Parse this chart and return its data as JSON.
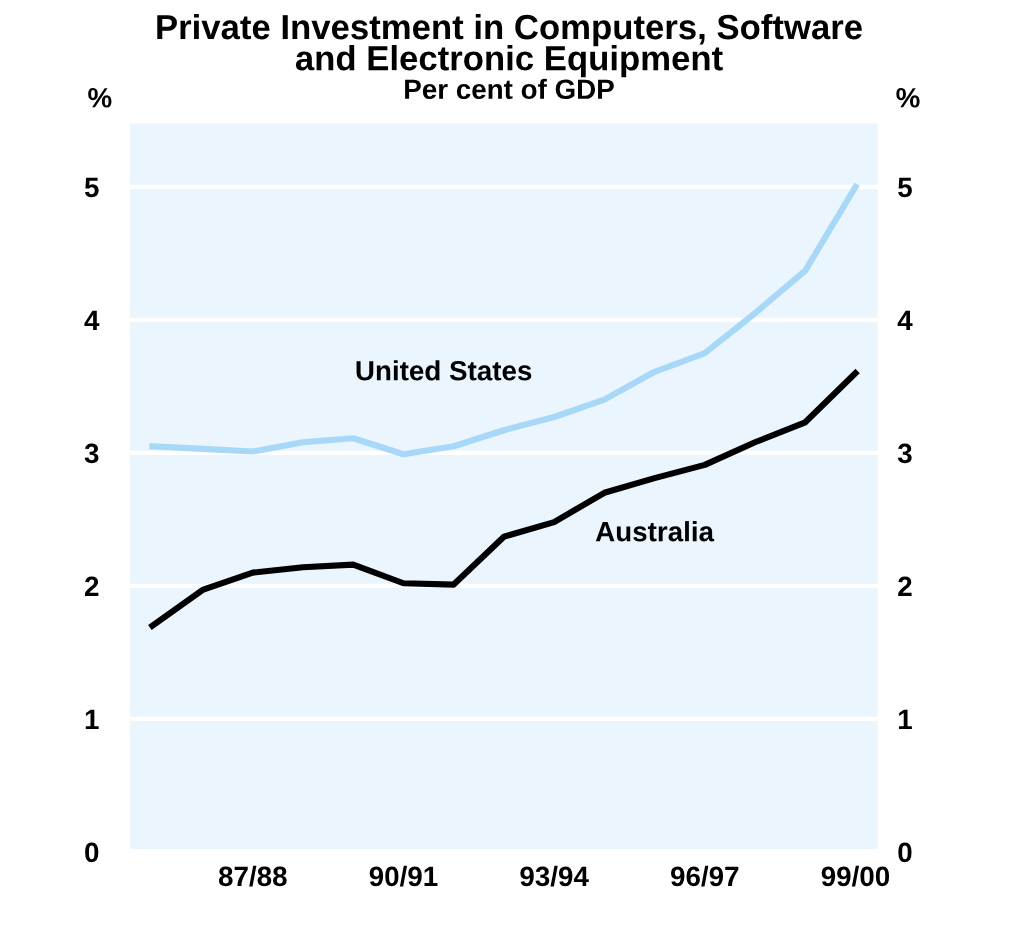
{
  "chart_data": {
    "type": "line",
    "title": "Private Investment in Computers, Software\nand Electronic Equipment",
    "subtitle": "Per cent of GDP",
    "ylabel": "%",
    "y2label": "%",
    "categories": [
      null,
      null,
      "87/88",
      null,
      null,
      "90/91",
      null,
      null,
      "93/94",
      null,
      null,
      "96/97",
      null,
      null,
      "99/00"
    ],
    "series": [
      {
        "name": "United States",
        "color": "#a8d8f8",
        "values": [
          3.05,
          3.03,
          3.01,
          3.08,
          3.11,
          2.99,
          3.05,
          3.17,
          3.27,
          3.4,
          3.61,
          3.75,
          4.05,
          4.37,
          5.0
        ]
      },
      {
        "name": "Australia",
        "color": "#000000",
        "values": [
          1.7,
          1.97,
          2.1,
          2.14,
          2.16,
          2.02,
          2.01,
          2.37,
          2.48,
          2.7,
          2.81,
          2.91,
          3.08,
          3.23,
          3.6
        ]
      }
    ],
    "ylim": [
      0,
      5.5
    ],
    "yticks": [
      0,
      1,
      2,
      3,
      4,
      5
    ],
    "y2lim": [
      0,
      5.5
    ],
    "y2ticks": [
      0,
      1,
      2,
      3,
      4,
      5
    ],
    "grid": "y",
    "legend": false,
    "marker": "none",
    "line_style": "solid"
  }
}
